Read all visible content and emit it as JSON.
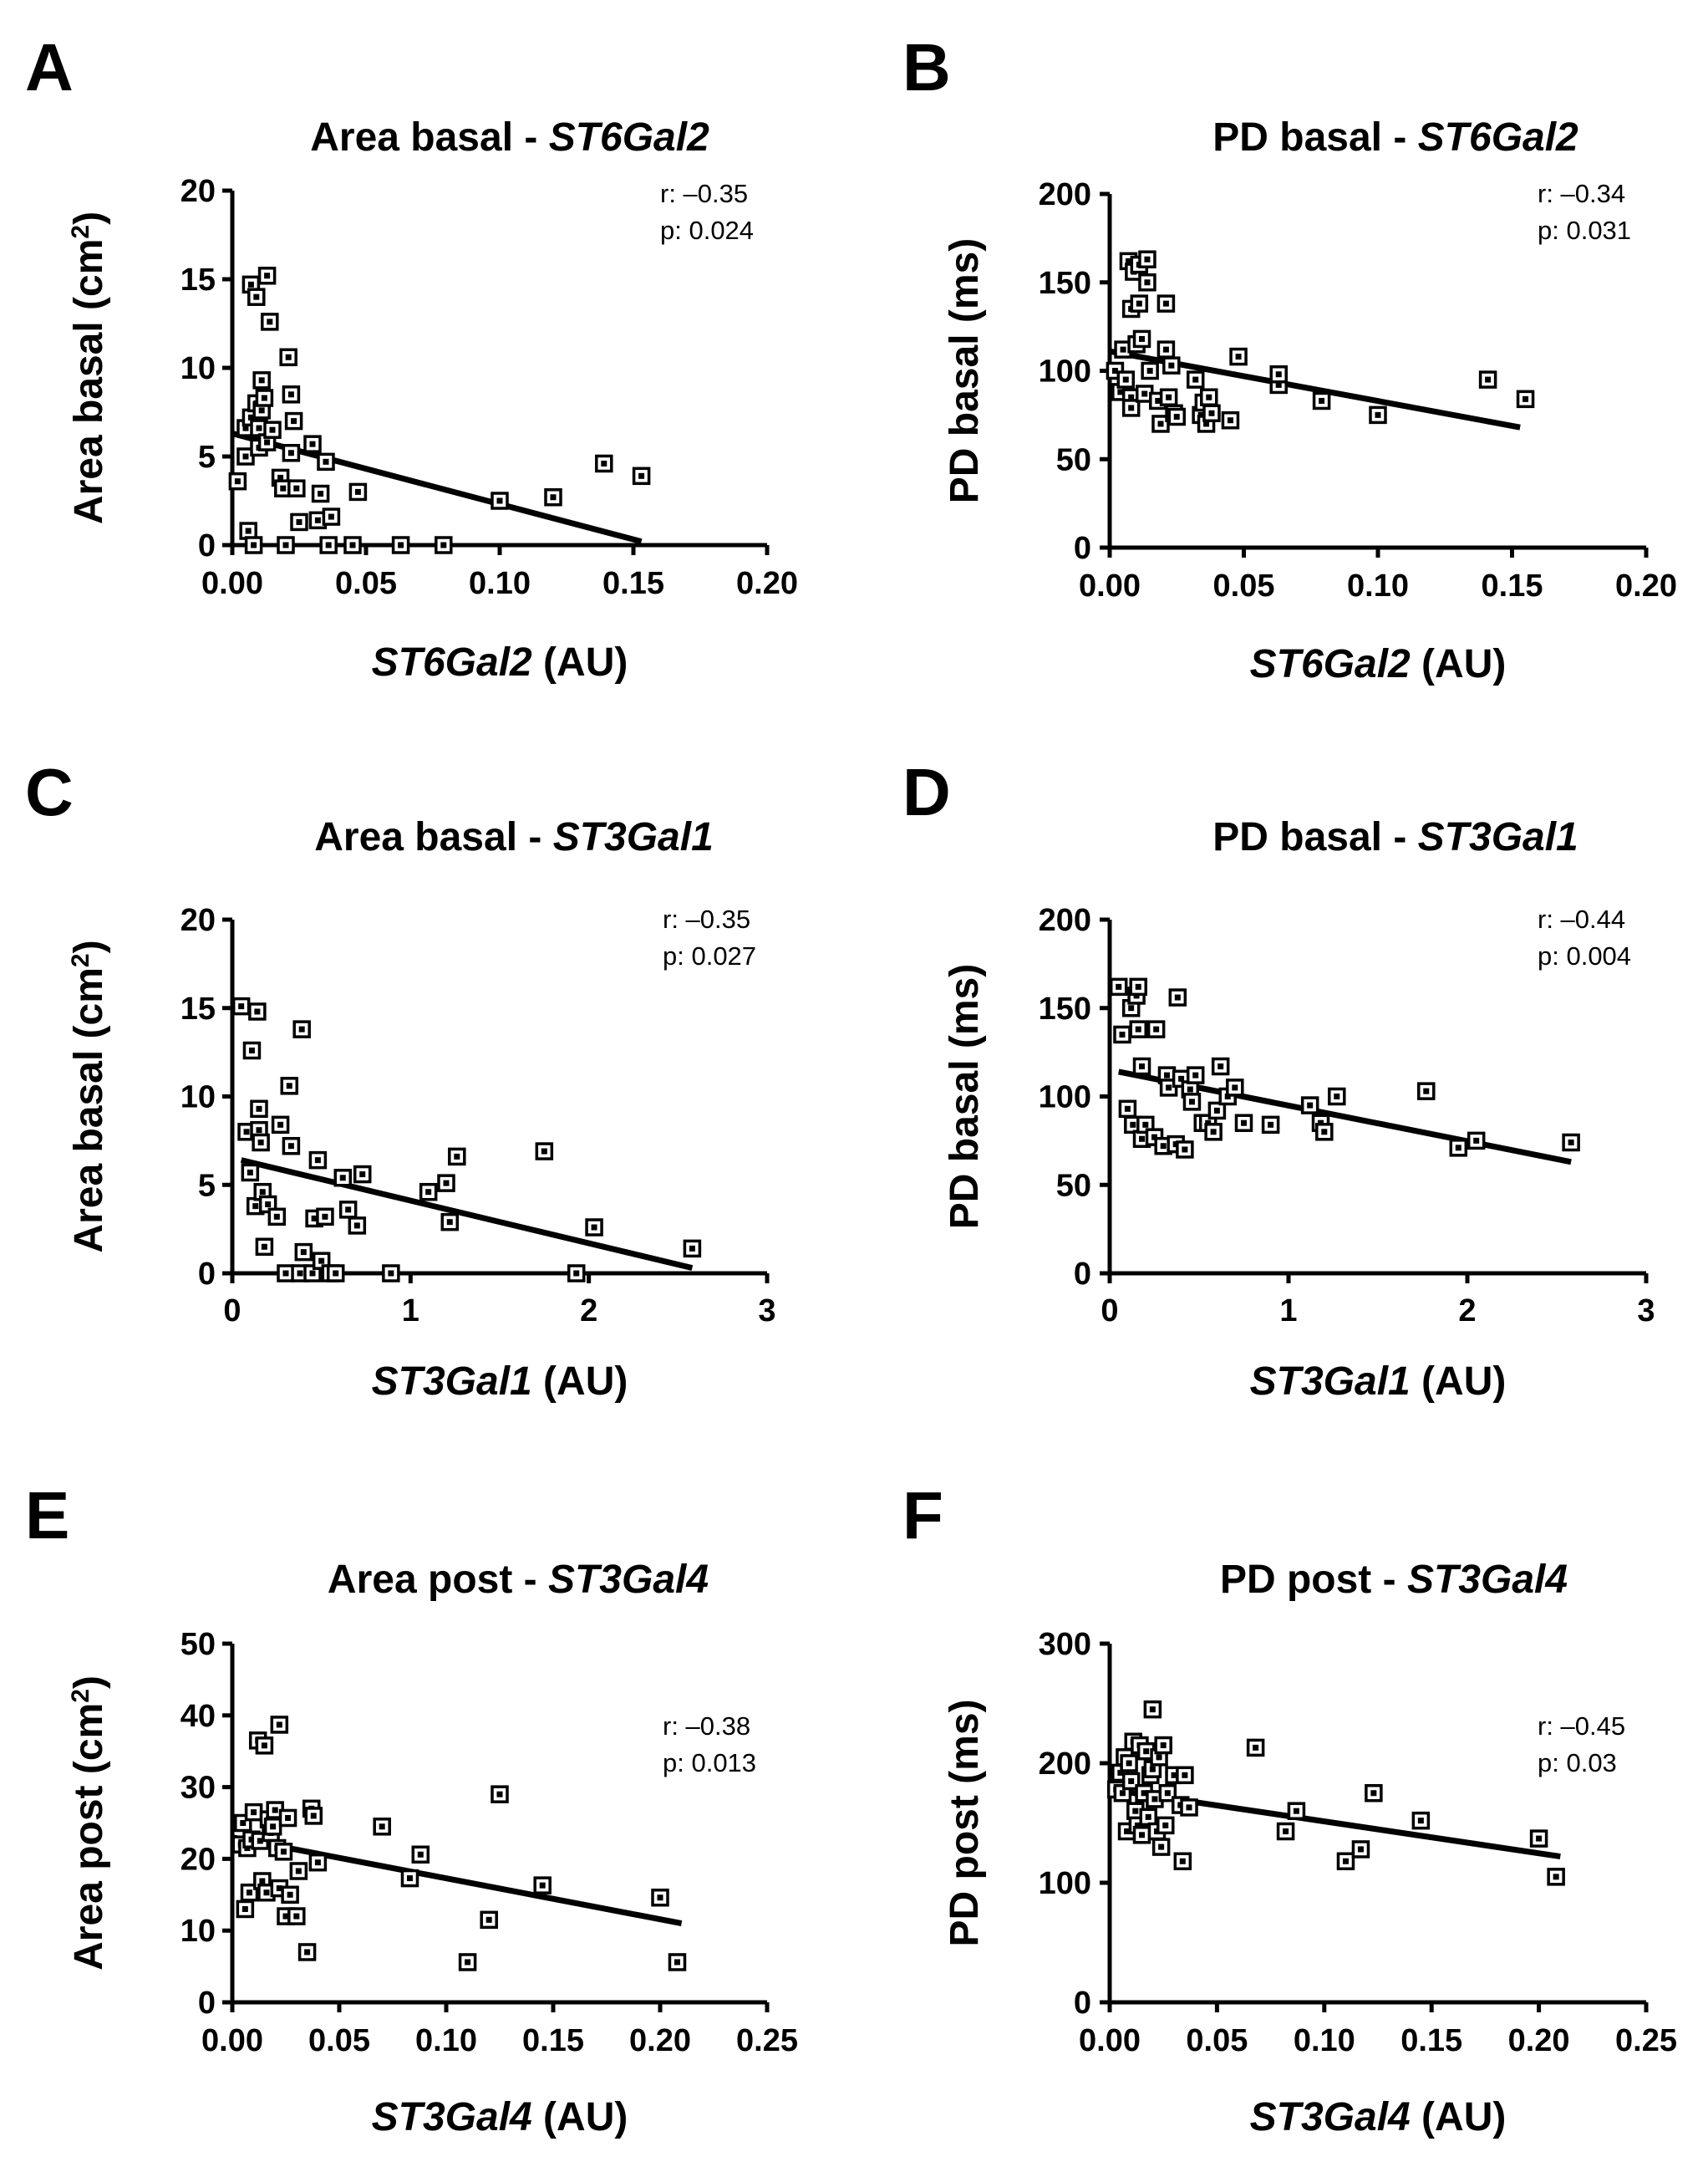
{
  "chart_data": [
    {
      "type": "scatter",
      "panel_label": "A",
      "title": {
        "prefix": "Area basal - ",
        "gene": "ST6Gal2"
      },
      "xlabel": {
        "gene": "ST6Gal2",
        "suffix": " (AU)"
      },
      "ylabel": {
        "text": "Area basal (cm",
        "sup": "2",
        "close": ")"
      },
      "xlim": [
        0,
        0.2
      ],
      "ylim": [
        0,
        20
      ],
      "xticks": [
        0,
        0.05,
        0.1,
        0.15,
        0.2
      ],
      "xtick_labels": [
        "0.00",
        "0.05",
        "0.10",
        "0.15",
        "0.20"
      ],
      "yticks": [
        0,
        5,
        10,
        15,
        20
      ],
      "ytick_labels": [
        "0",
        "5",
        "10",
        "15",
        "20"
      ],
      "stats": {
        "r": "r: –0.35",
        "p": "p: 0.024"
      },
      "fit": {
        "x": [
          0.0,
          0.153
        ],
        "y": [
          6.3,
          0.2
        ]
      },
      "points": [
        [
          0.002,
          3.6
        ],
        [
          0.005,
          5.0
        ],
        [
          0.005,
          6.6
        ],
        [
          0.006,
          0.8
        ],
        [
          0.007,
          7.2
        ],
        [
          0.007,
          14.7
        ],
        [
          0.008,
          0.0
        ],
        [
          0.009,
          14.0
        ],
        [
          0.009,
          8.0
        ],
        [
          0.01,
          6.6
        ],
        [
          0.01,
          5.5
        ],
        [
          0.011,
          9.3
        ],
        [
          0.011,
          7.6
        ],
        [
          0.012,
          8.3
        ],
        [
          0.013,
          15.2
        ],
        [
          0.013,
          5.8
        ],
        [
          0.014,
          12.6
        ],
        [
          0.015,
          6.5
        ],
        [
          0.018,
          3.8
        ],
        [
          0.019,
          3.2
        ],
        [
          0.02,
          0.0
        ],
        [
          0.021,
          10.6
        ],
        [
          0.022,
          8.5
        ],
        [
          0.022,
          5.2
        ],
        [
          0.023,
          7.0
        ],
        [
          0.024,
          3.2
        ],
        [
          0.025,
          1.3
        ],
        [
          0.03,
          5.7
        ],
        [
          0.032,
          1.4
        ],
        [
          0.033,
          2.9
        ],
        [
          0.035,
          4.7
        ],
        [
          0.036,
          0.0
        ],
        [
          0.037,
          1.6
        ],
        [
          0.045,
          0.0
        ],
        [
          0.047,
          3.0
        ],
        [
          0.063,
          0.0
        ],
        [
          0.079,
          0.0
        ],
        [
          0.1,
          2.5
        ],
        [
          0.12,
          2.7
        ],
        [
          0.139,
          4.6
        ],
        [
          0.153,
          3.9
        ]
      ]
    },
    {
      "type": "scatter",
      "panel_label": "B",
      "title": {
        "prefix": "PD basal - ",
        "gene": "ST6Gal2"
      },
      "xlabel": {
        "gene": "ST6Gal2",
        "suffix": " (AU)"
      },
      "ylabel": {
        "text": "PD basal (ms)"
      },
      "xlim": [
        0,
        0.2
      ],
      "ylim": [
        0,
        200
      ],
      "xticks": [
        0,
        0.05,
        0.1,
        0.15,
        0.2
      ],
      "xtick_labels": [
        "0.00",
        "0.05",
        "0.10",
        "0.15",
        "0.20"
      ],
      "yticks": [
        0,
        50,
        100,
        150,
        200
      ],
      "ytick_labels": [
        "0",
        "50",
        "100",
        "150",
        "200"
      ],
      "stats": {
        "r": "r: –0.34",
        "p": "p: 0.031"
      },
      "fit": {
        "x": [
          0.0,
          0.153
        ],
        "y": [
          111,
          68
        ]
      },
      "points": [
        [
          0.002,
          100
        ],
        [
          0.004,
          88
        ],
        [
          0.005,
          112
        ],
        [
          0.006,
          95
        ],
        [
          0.007,
          162
        ],
        [
          0.008,
          85
        ],
        [
          0.008,
          135
        ],
        [
          0.008,
          79
        ],
        [
          0.009,
          156
        ],
        [
          0.01,
          115
        ],
        [
          0.011,
          160
        ],
        [
          0.011,
          138
        ],
        [
          0.012,
          118
        ],
        [
          0.013,
          87
        ],
        [
          0.014,
          163
        ],
        [
          0.014,
          150
        ],
        [
          0.015,
          100
        ],
        [
          0.018,
          83
        ],
        [
          0.019,
          70
        ],
        [
          0.021,
          112
        ],
        [
          0.021,
          138
        ],
        [
          0.022,
          85
        ],
        [
          0.023,
          103
        ],
        [
          0.024,
          76
        ],
        [
          0.025,
          74
        ],
        [
          0.032,
          95
        ],
        [
          0.034,
          75
        ],
        [
          0.035,
          82
        ],
        [
          0.036,
          70
        ],
        [
          0.037,
          85
        ],
        [
          0.038,
          76
        ],
        [
          0.045,
          72
        ],
        [
          0.048,
          108
        ],
        [
          0.063,
          92
        ],
        [
          0.063,
          98
        ],
        [
          0.079,
          83
        ],
        [
          0.1,
          75
        ],
        [
          0.141,
          95
        ],
        [
          0.155,
          84
        ]
      ]
    },
    {
      "type": "scatter",
      "panel_label": "C",
      "title": {
        "prefix": "Area basal - ",
        "gene": "ST3Gal1"
      },
      "xlabel": {
        "gene": "ST3Gal1",
        "suffix": " (AU)"
      },
      "ylabel": {
        "text": "Area basal (cm",
        "sup": "2",
        "close": ")"
      },
      "xlim": [
        0,
        3
      ],
      "ylim": [
        0,
        20
      ],
      "xticks": [
        0,
        1,
        2,
        3
      ],
      "xtick_labels": [
        "0",
        "1",
        "2",
        "3"
      ],
      "yticks": [
        0,
        5,
        10,
        15,
        20
      ],
      "ytick_labels": [
        "0",
        "5",
        "10",
        "15",
        "20"
      ],
      "stats": {
        "r": "r: –0.35",
        "p": "p: 0.027"
      },
      "fit": {
        "x": [
          0.05,
          2.58
        ],
        "y": [
          6.4,
          0.3
        ]
      },
      "points": [
        [
          0.05,
          15.1
        ],
        [
          0.08,
          8.0
        ],
        [
          0.1,
          5.7
        ],
        [
          0.11,
          12.6
        ],
        [
          0.13,
          3.8
        ],
        [
          0.14,
          14.8
        ],
        [
          0.15,
          8.1
        ],
        [
          0.15,
          9.3
        ],
        [
          0.16,
          7.4
        ],
        [
          0.17,
          4.6
        ],
        [
          0.18,
          1.5
        ],
        [
          0.2,
          3.9
        ],
        [
          0.25,
          3.2
        ],
        [
          0.27,
          8.4
        ],
        [
          0.3,
          0.0
        ],
        [
          0.32,
          10.6
        ],
        [
          0.33,
          7.2
        ],
        [
          0.38,
          0.0
        ],
        [
          0.39,
          13.8
        ],
        [
          0.4,
          1.2
        ],
        [
          0.45,
          0.0
        ],
        [
          0.46,
          3.1
        ],
        [
          0.48,
          6.4
        ],
        [
          0.5,
          0.7
        ],
        [
          0.52,
          3.2
        ],
        [
          0.55,
          0.0
        ],
        [
          0.58,
          0.0
        ],
        [
          0.62,
          5.4
        ],
        [
          0.65,
          3.6
        ],
        [
          0.7,
          2.7
        ],
        [
          0.73,
          5.6
        ],
        [
          0.89,
          0.0
        ],
        [
          1.1,
          4.6
        ],
        [
          1.2,
          5.1
        ],
        [
          1.22,
          2.9
        ],
        [
          1.26,
          6.6
        ],
        [
          1.75,
          6.9
        ],
        [
          1.93,
          0.0
        ],
        [
          2.03,
          2.6
        ],
        [
          2.58,
          1.4
        ]
      ]
    },
    {
      "type": "scatter",
      "panel_label": "D",
      "title": {
        "prefix": "PD basal - ",
        "gene": "ST3Gal1"
      },
      "xlabel": {
        "gene": "ST3Gal1",
        "suffix": " (AU)"
      },
      "ylabel": {
        "text": "PD basal (ms)"
      },
      "xlim": [
        0,
        3
      ],
      "ylim": [
        0,
        200
      ],
      "xticks": [
        0,
        1,
        2,
        3
      ],
      "xtick_labels": [
        "0",
        "1",
        "2",
        "3"
      ],
      "yticks": [
        0,
        50,
        100,
        150,
        200
      ],
      "ytick_labels": [
        "0",
        "50",
        "100",
        "150",
        "200"
      ],
      "stats": {
        "r": "r: –0.44",
        "p": "p: 0.004"
      },
      "fit": {
        "x": [
          0.05,
          2.58
        ],
        "y": [
          114,
          63
        ]
      },
      "points": [
        [
          0.05,
          162
        ],
        [
          0.07,
          135
        ],
        [
          0.1,
          93
        ],
        [
          0.12,
          150
        ],
        [
          0.13,
          84
        ],
        [
          0.15,
          157
        ],
        [
          0.16,
          162
        ],
        [
          0.16,
          138
        ],
        [
          0.18,
          117
        ],
        [
          0.18,
          76
        ],
        [
          0.2,
          84
        ],
        [
          0.25,
          77
        ],
        [
          0.26,
          138
        ],
        [
          0.3,
          72
        ],
        [
          0.32,
          112
        ],
        [
          0.33,
          105
        ],
        [
          0.37,
          73
        ],
        [
          0.38,
          156
        ],
        [
          0.4,
          110
        ],
        [
          0.42,
          70
        ],
        [
          0.45,
          104
        ],
        [
          0.46,
          97
        ],
        [
          0.48,
          112
        ],
        [
          0.52,
          85
        ],
        [
          0.55,
          85
        ],
        [
          0.58,
          80
        ],
        [
          0.6,
          92
        ],
        [
          0.62,
          117
        ],
        [
          0.66,
          100
        ],
        [
          0.7,
          105
        ],
        [
          0.75,
          85
        ],
        [
          0.9,
          84
        ],
        [
          1.12,
          95
        ],
        [
          1.18,
          85
        ],
        [
          1.2,
          80
        ],
        [
          1.27,
          100
        ],
        [
          1.77,
          103
        ],
        [
          1.95,
          71
        ],
        [
          2.05,
          75
        ],
        [
          2.58,
          74
        ]
      ]
    },
    {
      "type": "scatter",
      "panel_label": "E",
      "title": {
        "prefix": "Area post - ",
        "gene": "ST3Gal4"
      },
      "xlabel": {
        "gene": "ST3Gal4",
        "suffix": " (AU)"
      },
      "ylabel": {
        "text": "Area post (cm",
        "sup": "2",
        "close": ")"
      },
      "xlim": [
        0,
        0.25
      ],
      "ylim": [
        0,
        50
      ],
      "xticks": [
        0,
        0.05,
        0.1,
        0.15,
        0.2,
        0.25
      ],
      "xtick_labels": [
        "0.00",
        "0.05",
        "0.10",
        "0.15",
        "0.20",
        "0.25"
      ],
      "yticks": [
        0,
        10,
        20,
        30,
        40,
        50
      ],
      "ytick_labels": [
        "0",
        "10",
        "20",
        "30",
        "40",
        "50"
      ],
      "stats": {
        "r": "r: –0.38",
        "p": "p: 0.013"
      },
      "fit": {
        "x": [
          0.0,
          0.21
        ],
        "y": [
          23,
          11
        ]
      },
      "points": [
        [
          0.004,
          22.0
        ],
        [
          0.005,
          25.0
        ],
        [
          0.006,
          13.0
        ],
        [
          0.007,
          21.5
        ],
        [
          0.008,
          15.3
        ],
        [
          0.009,
          22.7
        ],
        [
          0.01,
          26.5
        ],
        [
          0.012,
          36.5
        ],
        [
          0.013,
          22.5
        ],
        [
          0.014,
          16.9
        ],
        [
          0.015,
          35.8
        ],
        [
          0.016,
          15.3
        ],
        [
          0.017,
          25.5
        ],
        [
          0.018,
          23.6
        ],
        [
          0.019,
          24.5
        ],
        [
          0.02,
          26.8
        ],
        [
          0.021,
          21.5
        ],
        [
          0.022,
          38.7
        ],
        [
          0.022,
          15.9
        ],
        [
          0.024,
          21.0
        ],
        [
          0.025,
          12.0
        ],
        [
          0.026,
          25.7
        ],
        [
          0.027,
          15.0
        ],
        [
          0.03,
          12.0
        ],
        [
          0.031,
          18.3
        ],
        [
          0.035,
          7.0
        ],
        [
          0.037,
          27.0
        ],
        [
          0.038,
          26.0
        ],
        [
          0.04,
          19.5
        ],
        [
          0.07,
          24.5
        ],
        [
          0.088,
          20.6
        ],
        [
          0.083,
          17.3
        ],
        [
          0.11,
          5.6
        ],
        [
          0.12,
          11.5
        ],
        [
          0.125,
          29.0
        ],
        [
          0.145,
          16.3
        ],
        [
          0.2,
          14.6
        ],
        [
          0.208,
          5.6
        ]
      ]
    },
    {
      "type": "scatter",
      "panel_label": "F",
      "title": {
        "prefix": "PD post - ",
        "gene": "ST3Gal4"
      },
      "xlabel": {
        "gene": "ST3Gal4",
        "suffix": " (AU)"
      },
      "ylabel": {
        "text": "PD post (ms)"
      },
      "xlim": [
        0,
        0.25
      ],
      "ylim": [
        0,
        300
      ],
      "xticks": [
        0,
        0.05,
        0.1,
        0.15,
        0.2,
        0.25
      ],
      "xtick_labels": [
        "0.00",
        "0.05",
        "0.10",
        "0.15",
        "0.20",
        "0.25"
      ],
      "yticks": [
        0,
        100,
        200,
        300
      ],
      "ytick_labels": [
        "0",
        "100",
        "200",
        "300"
      ],
      "stats": {
        "r": "r: –0.45",
        "p": "p: 0.03"
      },
      "fit": {
        "x": [
          0.0,
          0.21
        ],
        "y": [
          178,
          122
        ]
      },
      "points": [
        [
          0.003,
          178
        ],
        [
          0.005,
          192
        ],
        [
          0.006,
          175
        ],
        [
          0.007,
          205
        ],
        [
          0.008,
          143
        ],
        [
          0.009,
          200
        ],
        [
          0.01,
          185
        ],
        [
          0.011,
          218
        ],
        [
          0.012,
          160
        ],
        [
          0.013,
          148
        ],
        [
          0.014,
          215
        ],
        [
          0.015,
          140
        ],
        [
          0.016,
          175
        ],
        [
          0.017,
          210
        ],
        [
          0.018,
          155
        ],
        [
          0.019,
          190
        ],
        [
          0.02,
          245
        ],
        [
          0.02,
          195
        ],
        [
          0.021,
          170
        ],
        [
          0.022,
          143
        ],
        [
          0.023,
          205
        ],
        [
          0.024,
          130
        ],
        [
          0.025,
          215
        ],
        [
          0.026,
          148
        ],
        [
          0.027,
          175
        ],
        [
          0.03,
          190
        ],
        [
          0.033,
          165
        ],
        [
          0.034,
          118
        ],
        [
          0.035,
          190
        ],
        [
          0.037,
          163
        ],
        [
          0.068,
          213
        ],
        [
          0.082,
          143
        ],
        [
          0.087,
          160
        ],
        [
          0.11,
          118
        ],
        [
          0.117,
          128
        ],
        [
          0.123,
          175
        ],
        [
          0.145,
          152
        ],
        [
          0.2,
          137
        ],
        [
          0.208,
          105
        ]
      ]
    }
  ]
}
